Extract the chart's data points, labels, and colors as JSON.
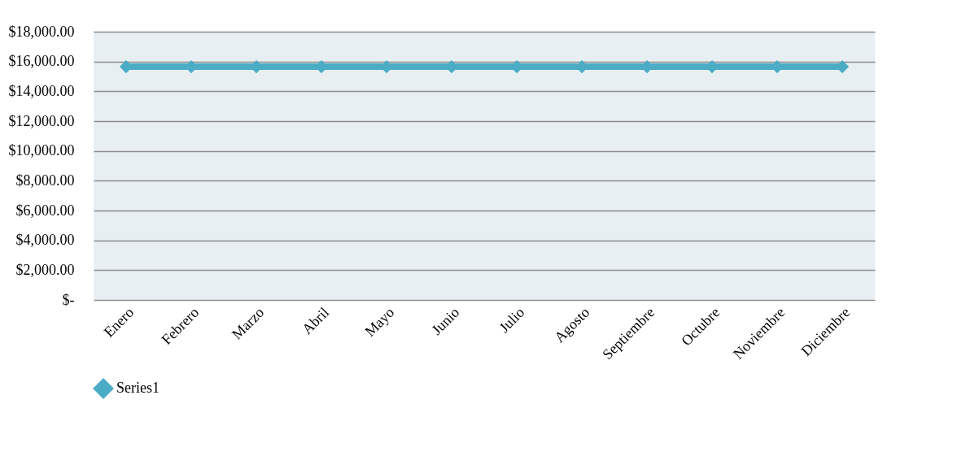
{
  "chart_data": {
    "type": "line",
    "categories": [
      "Enero",
      "Febrero",
      "Marzo",
      "Abril",
      "Mayo",
      "Junio",
      "Julio",
      "Agosto",
      "Septiembre",
      "Octubre",
      "Noviembre",
      "Diciembre"
    ],
    "series": [
      {
        "name": "Series1",
        "color": "#4bacc6",
        "values": [
          15650,
          15650,
          15650,
          15650,
          15650,
          15650,
          15650,
          15650,
          15650,
          15650,
          15650,
          15650
        ]
      }
    ],
    "ylim": [
      0,
      18000
    ],
    "yticks": [
      {
        "value": 0,
        "label": "$-"
      },
      {
        "value": 2000,
        "label": "$2,000.00"
      },
      {
        "value": 4000,
        "label": "$4,000.00"
      },
      {
        "value": 6000,
        "label": "$6,000.00"
      },
      {
        "value": 8000,
        "label": "$8,000.00"
      },
      {
        "value": 10000,
        "label": "$10,000.00"
      },
      {
        "value": 12000,
        "label": "$12,000.00"
      },
      {
        "value": 14000,
        "label": "$14,000.00"
      },
      {
        "value": 16000,
        "label": "$16,000.00"
      },
      {
        "value": 18000,
        "label": "$18,000.00"
      }
    ],
    "grid": "y",
    "legend": "bottom",
    "marker": "diamond",
    "line_style": "solid"
  }
}
